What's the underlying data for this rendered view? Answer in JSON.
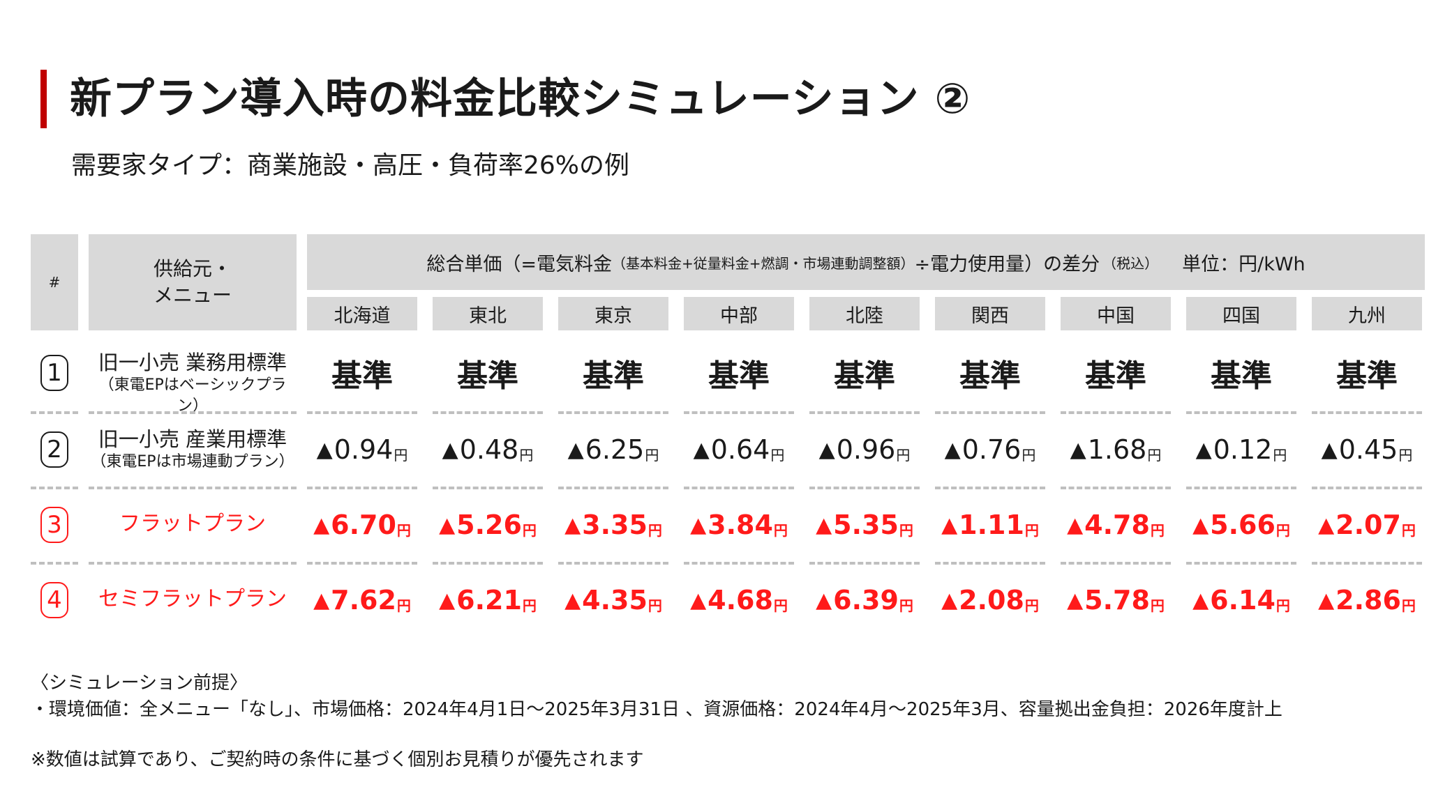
{
  "title": "新プラン導入時の料金比較シミュレーション ②",
  "subtitle": "需要家タイプ：商業施設・高圧・負荷率26%の例",
  "table": {
    "num_header": "#",
    "menu_header_line1": "供給元・",
    "menu_header_line2": "メニュー",
    "main_header_a": "総合単価（=電気料金",
    "main_header_b": "（基本料金+従量料金+燃調・市場連動調整額）",
    "main_header_c": "÷電力使用量）の差分",
    "main_header_d": "（税込）",
    "main_header_e": "単位：円/kWh",
    "regions": [
      "北海道",
      "東北",
      "東京",
      "中部",
      "北陸",
      "関西",
      "中国",
      "四国",
      "九州"
    ],
    "unit": "円",
    "rows": [
      {
        "num": "1",
        "name": "旧一小売 業務用標準",
        "sub": "（東電EPはベーシックプラン）",
        "style": "base",
        "values": [
          "基準",
          "基準",
          "基準",
          "基準",
          "基準",
          "基準",
          "基準",
          "基準",
          "基準"
        ]
      },
      {
        "num": "2",
        "name": "旧一小売 産業用標準",
        "sub": "（東電EPは市場連動プラン）",
        "style": "black",
        "values": [
          "0.94",
          "0.48",
          "6.25",
          "0.64",
          "0.96",
          "0.76",
          "1.68",
          "0.12",
          "0.45"
        ]
      },
      {
        "num": "3",
        "name": "フラットプラン",
        "sub": "",
        "style": "red",
        "values": [
          "6.70",
          "5.26",
          "3.35",
          "3.84",
          "5.35",
          "1.11",
          "4.78",
          "5.66",
          "2.07"
        ]
      },
      {
        "num": "4",
        "name": "セミフラットプラン",
        "sub": "",
        "style": "red",
        "values": [
          "7.62",
          "6.21",
          "4.35",
          "4.68",
          "6.39",
          "2.08",
          "5.78",
          "6.14",
          "2.86"
        ]
      }
    ]
  },
  "notes": {
    "premise_title": "〈シミュレーション前提〉",
    "premise_line": "・環境価値：全メニュー「なし」、市場価格：2024年4月1日～2025年3月31日 、資源価格：2024年4月～2025年3月、容量拠出金負担：2026年度計上",
    "disclaimer": "※数値は試算であり、ご契約時の条件に基づく個別お見積りが優先されます"
  },
  "colors": {
    "accent": "#c00000",
    "red_text": "#ff1a1a",
    "header_gray": "#d9d9d9"
  }
}
